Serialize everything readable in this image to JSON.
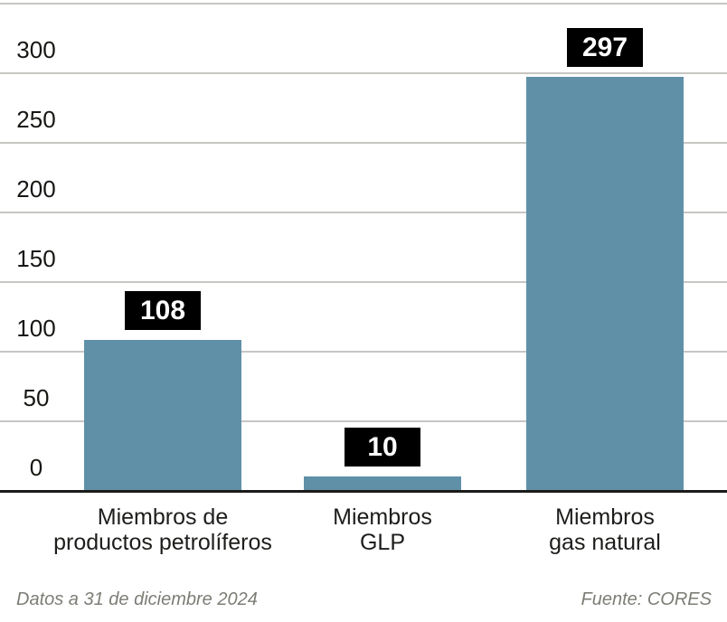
{
  "chart_data": {
    "type": "bar",
    "title": "",
    "categories": [
      [
        "Miembros de",
        "productos petrolíferos"
      ],
      [
        "Miembros",
        "GLP"
      ],
      [
        "Miembros",
        "gas natural"
      ]
    ],
    "values": [
      108,
      10,
      297
    ],
    "data_labels": [
      "108",
      "10",
      "297"
    ],
    "yticks": [
      0,
      50,
      100,
      150,
      200,
      250,
      300
    ],
    "gridlines": [
      50,
      100,
      150,
      200,
      250,
      300,
      350
    ],
    "ylim": [
      0,
      350
    ],
    "grid": "on",
    "legend": "none",
    "bar_color": "#6090a8",
    "value_label_bg": "#000000",
    "value_label_color": "#ffffff",
    "gridline_color": "#c7c6c2",
    "axis_line_color": "#1b1b19"
  },
  "footer": {
    "note": "Datos a 31 de diciembre 2024",
    "source": "Fuente: CORES"
  }
}
